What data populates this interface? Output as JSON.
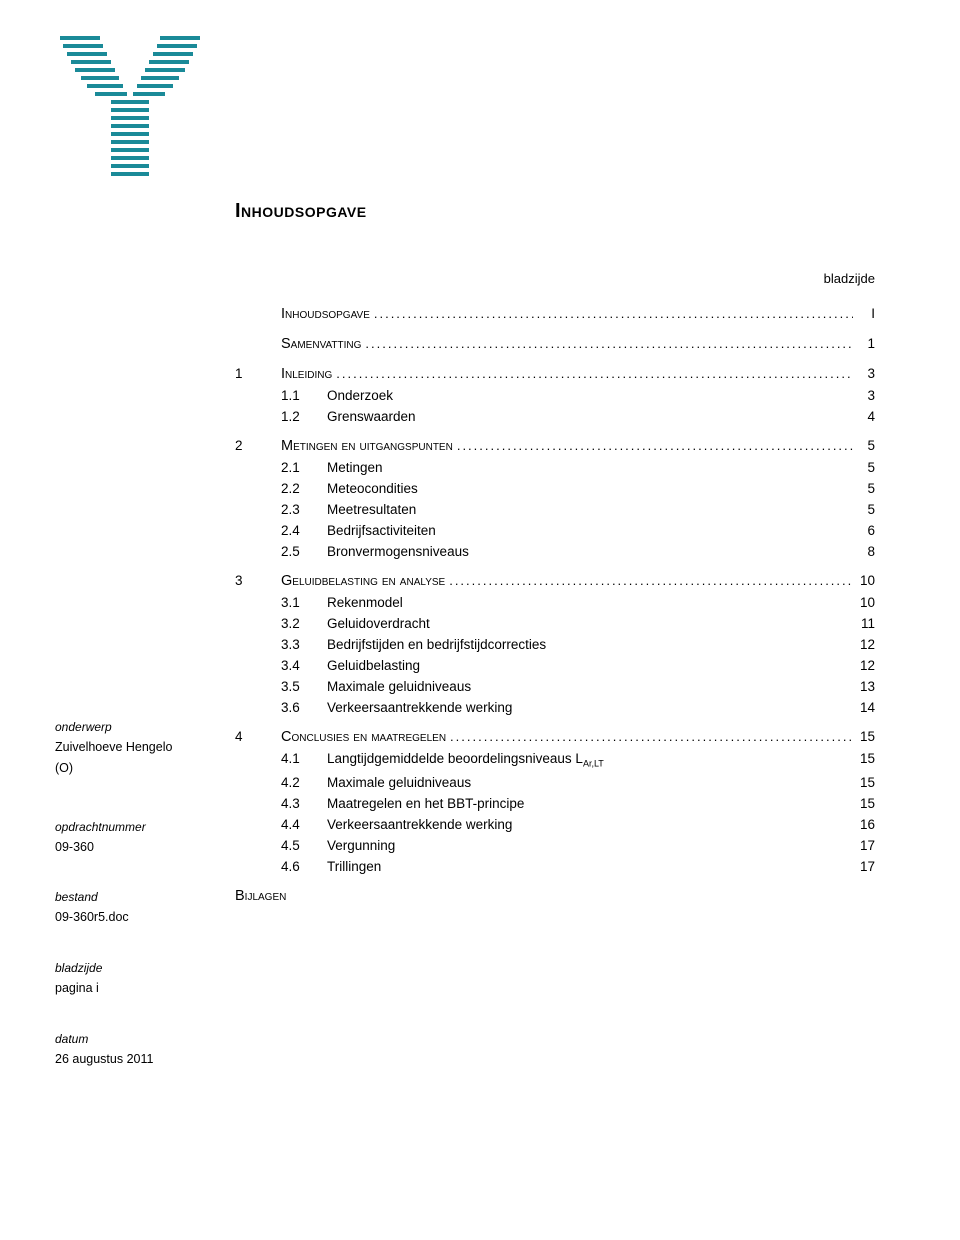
{
  "logo": {
    "stroke_color": "#1a8a98",
    "background": "#ffffff"
  },
  "colors": {
    "text": "#000000",
    "background": "#ffffff"
  },
  "title": "Inhoudsopgave",
  "page_label": "bladzijde",
  "sidebar": {
    "onderwerp_label": "onderwerp",
    "onderwerp_line1": "Zuivelhoeve Hengelo",
    "onderwerp_line2": "(O)",
    "opdrachtnummer_label": "opdrachtnummer",
    "opdrachtnummer": "09-360",
    "bestand_label": "bestand",
    "bestand": "09-360r5.doc",
    "bladzijde_label": "bladzijde",
    "bladzijde": "pagina i",
    "datum_label": "datum",
    "datum": "26 augustus 2011"
  },
  "toc": [
    {
      "type": "top",
      "num": "",
      "text": "Inhoudsopgave",
      "page": "I",
      "smallcaps": true,
      "dotted": true
    },
    {
      "type": "top",
      "num": "",
      "text": "Samenvatting",
      "page": "1",
      "smallcaps": true,
      "dotted": true
    },
    {
      "type": "top",
      "num": "1",
      "text": "Inleiding",
      "page": "3",
      "smallcaps": true,
      "dotted": true
    },
    {
      "type": "sub",
      "num": "1.1",
      "text": "Onderzoek",
      "page": "3"
    },
    {
      "type": "sub",
      "num": "1.2",
      "text": "Grenswaarden",
      "page": "4"
    },
    {
      "type": "top",
      "num": "2",
      "text": "Metingen en uitgangspunten",
      "page": "5",
      "smallcaps": true,
      "dotted": true
    },
    {
      "type": "sub",
      "num": "2.1",
      "text": "Metingen",
      "page": "5"
    },
    {
      "type": "sub",
      "num": "2.2",
      "text": "Meteocondities",
      "page": "5"
    },
    {
      "type": "sub",
      "num": "2.3",
      "text": "Meetresultaten",
      "page": "5"
    },
    {
      "type": "sub",
      "num": "2.4",
      "text": "Bedrijfsactiviteiten",
      "page": "6"
    },
    {
      "type": "sub",
      "num": "2.5",
      "text": "Bronvermogensniveaus",
      "page": "8"
    },
    {
      "type": "top",
      "num": "3",
      "text": "Geluidbelasting en analyse",
      "page": "10",
      "smallcaps": true,
      "dotted": true
    },
    {
      "type": "sub",
      "num": "3.1",
      "text": "Rekenmodel",
      "page": "10"
    },
    {
      "type": "sub",
      "num": "3.2",
      "text": "Geluidoverdracht",
      "page": "11"
    },
    {
      "type": "sub",
      "num": "3.3",
      "text": "Bedrijfstijden en bedrijfstijdcorrecties",
      "page": "12"
    },
    {
      "type": "sub",
      "num": "3.4",
      "text": "Geluidbelasting",
      "page": "12"
    },
    {
      "type": "sub",
      "num": "3.5",
      "text": "Maximale geluidniveaus",
      "page": "13"
    },
    {
      "type": "sub",
      "num": "3.6",
      "text": "Verkeersaantrekkende werking",
      "page": "14"
    },
    {
      "type": "top",
      "num": "4",
      "text": "Conclusies en maatregelen",
      "page": "15",
      "smallcaps": true,
      "dotted": true
    },
    {
      "type": "sub",
      "num": "4.1",
      "text": "Langtijdgemiddelde beoordelingsniveaus L",
      "sub": "Ar,LT",
      "page": "15"
    },
    {
      "type": "sub",
      "num": "4.2",
      "text": "Maximale geluidniveaus",
      "page": "15"
    },
    {
      "type": "sub",
      "num": "4.3",
      "text": "Maatregelen en het BBT-principe",
      "page": "15"
    },
    {
      "type": "sub",
      "num": "4.4",
      "text": "Verkeersaantrekkende werking",
      "page": "16"
    },
    {
      "type": "sub",
      "num": "4.5",
      "text": "Vergunning",
      "page": "17"
    },
    {
      "type": "sub",
      "num": "4.6",
      "text": "Trillingen",
      "page": "17"
    }
  ],
  "bijlagen": "Bijlagen"
}
